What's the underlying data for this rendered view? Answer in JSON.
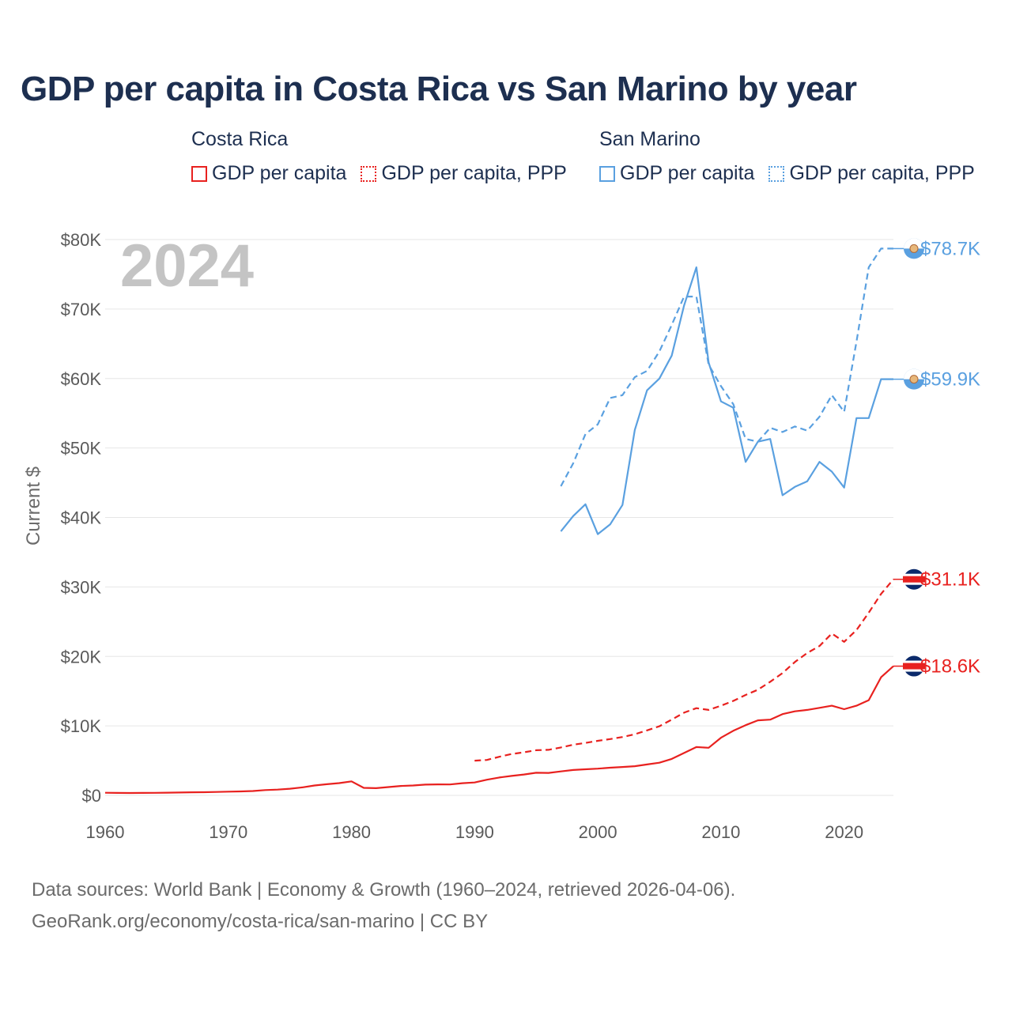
{
  "title": "GDP per capita in Costa Rica vs San Marino by year",
  "legend": {
    "groups": [
      {
        "name": "Costa Rica",
        "color": "#e8211f",
        "items": [
          {
            "label": "GDP per capita",
            "style": "solid"
          },
          {
            "label": "GDP per capita, PPP",
            "style": "dotted"
          }
        ]
      },
      {
        "name": "San Marino",
        "color": "#5aa0e0",
        "items": [
          {
            "label": "GDP per capita",
            "style": "solid"
          },
          {
            "label": "GDP per capita, PPP",
            "style": "dotted"
          }
        ]
      }
    ]
  },
  "year_badge": "2024",
  "footer": {
    "line1": "Data sources: World Bank | Economy & Growth (1960–2024, retrieved 2026-04-06).",
    "line2": "GeoRank.org/economy/costa-rica/san-marino | CC BY"
  },
  "chart_data": {
    "type": "line",
    "title": "GDP per capita in Costa Rica vs San Marino by year",
    "xlabel": "",
    "ylabel": "Current $",
    "xlim": [
      1960,
      2024
    ],
    "ylim": [
      0,
      80000
    ],
    "x_ticks": [
      1960,
      1970,
      1980,
      1990,
      2000,
      2010,
      2020
    ],
    "y_ticks": [
      0,
      10000,
      20000,
      30000,
      40000,
      50000,
      60000,
      70000,
      80000
    ],
    "y_tick_labels": [
      "$0",
      "$10K",
      "$20K",
      "$30K",
      "$40K",
      "$50K",
      "$60K",
      "$70K",
      "$80K"
    ],
    "grid": true,
    "series": [
      {
        "name": "Costa Rica — GDP per capita",
        "country": "Costa Rica",
        "color": "#e8211f",
        "dash": "solid",
        "end_label": "$18.6K",
        "flag": "costa-rica",
        "points": [
          [
            1960,
            380
          ],
          [
            1961,
            350
          ],
          [
            1962,
            340
          ],
          [
            1963,
            350
          ],
          [
            1964,
            360
          ],
          [
            1965,
            390
          ],
          [
            1966,
            410
          ],
          [
            1967,
            440
          ],
          [
            1968,
            460
          ],
          [
            1969,
            490
          ],
          [
            1970,
            540
          ],
          [
            1971,
            570
          ],
          [
            1972,
            630
          ],
          [
            1973,
            760
          ],
          [
            1974,
            830
          ],
          [
            1975,
            960
          ],
          [
            1976,
            1150
          ],
          [
            1977,
            1420
          ],
          [
            1978,
            1600
          ],
          [
            1979,
            1760
          ],
          [
            1980,
            2010
          ],
          [
            1981,
            1080
          ],
          [
            1982,
            1040
          ],
          [
            1983,
            1200
          ],
          [
            1984,
            1350
          ],
          [
            1985,
            1420
          ],
          [
            1986,
            1550
          ],
          [
            1987,
            1580
          ],
          [
            1988,
            1570
          ],
          [
            1989,
            1750
          ],
          [
            1990,
            1850
          ],
          [
            1991,
            2250
          ],
          [
            1992,
            2570
          ],
          [
            1993,
            2800
          ],
          [
            1994,
            3000
          ],
          [
            1995,
            3250
          ],
          [
            1996,
            3230
          ],
          [
            1997,
            3450
          ],
          [
            1998,
            3650
          ],
          [
            1999,
            3750
          ],
          [
            2000,
            3850
          ],
          [
            2001,
            3980
          ],
          [
            2002,
            4080
          ],
          [
            2003,
            4200
          ],
          [
            2004,
            4450
          ],
          [
            2005,
            4700
          ],
          [
            2006,
            5250
          ],
          [
            2007,
            6100
          ],
          [
            2008,
            6950
          ],
          [
            2009,
            6850
          ],
          [
            2010,
            8300
          ],
          [
            2011,
            9300
          ],
          [
            2012,
            10100
          ],
          [
            2013,
            10800
          ],
          [
            2014,
            10900
          ],
          [
            2015,
            11700
          ],
          [
            2016,
            12100
          ],
          [
            2017,
            12300
          ],
          [
            2018,
            12600
          ],
          [
            2019,
            12900
          ],
          [
            2020,
            12400
          ],
          [
            2021,
            12900
          ],
          [
            2022,
            13700
          ],
          [
            2023,
            17000
          ],
          [
            2024,
            18600
          ]
        ]
      },
      {
        "name": "Costa Rica — GDP per capita, PPP",
        "country": "Costa Rica",
        "color": "#e8211f",
        "dash": "dashed",
        "end_label": "$31.1K",
        "flag": "costa-rica",
        "points": [
          [
            1990,
            5000
          ],
          [
            1991,
            5100
          ],
          [
            1992,
            5550
          ],
          [
            1993,
            5950
          ],
          [
            1994,
            6200
          ],
          [
            1995,
            6500
          ],
          [
            1996,
            6550
          ],
          [
            1997,
            6900
          ],
          [
            1998,
            7300
          ],
          [
            1999,
            7550
          ],
          [
            2000,
            7850
          ],
          [
            2001,
            8100
          ],
          [
            2002,
            8400
          ],
          [
            2003,
            8800
          ],
          [
            2004,
            9350
          ],
          [
            2005,
            9950
          ],
          [
            2006,
            10900
          ],
          [
            2007,
            11900
          ],
          [
            2008,
            12550
          ],
          [
            2009,
            12300
          ],
          [
            2010,
            12900
          ],
          [
            2011,
            13600
          ],
          [
            2012,
            14450
          ],
          [
            2013,
            15200
          ],
          [
            2014,
            16350
          ],
          [
            2015,
            17600
          ],
          [
            2016,
            19200
          ],
          [
            2017,
            20500
          ],
          [
            2018,
            21500
          ],
          [
            2019,
            23300
          ],
          [
            2020,
            22100
          ],
          [
            2021,
            23800
          ],
          [
            2022,
            26300
          ],
          [
            2023,
            29000
          ],
          [
            2024,
            31100
          ]
        ]
      },
      {
        "name": "San Marino — GDP per capita",
        "country": "San Marino",
        "color": "#5aa0e0",
        "dash": "solid",
        "end_label": "$59.9K",
        "flag": "san-marino",
        "points": [
          [
            1997,
            38000
          ],
          [
            1998,
            40200
          ],
          [
            1999,
            41900
          ],
          [
            2000,
            37600
          ],
          [
            2001,
            39000
          ],
          [
            2002,
            41800
          ],
          [
            2003,
            52600
          ],
          [
            2004,
            58300
          ],
          [
            2005,
            60000
          ],
          [
            2006,
            63300
          ],
          [
            2007,
            70500
          ],
          [
            2008,
            76000
          ],
          [
            2009,
            62300
          ],
          [
            2010,
            56700
          ],
          [
            2011,
            55800
          ],
          [
            2012,
            48000
          ],
          [
            2013,
            50900
          ],
          [
            2014,
            51300
          ],
          [
            2015,
            43200
          ],
          [
            2016,
            44400
          ],
          [
            2017,
            45200
          ],
          [
            2018,
            48000
          ],
          [
            2019,
            46600
          ],
          [
            2020,
            44300
          ],
          [
            2021,
            54300
          ],
          [
            2022,
            54300
          ],
          [
            2023,
            59900
          ],
          [
            2024,
            59900
          ]
        ]
      },
      {
        "name": "San Marino — GDP per capita, PPP",
        "country": "San Marino",
        "color": "#5aa0e0",
        "dash": "dashed",
        "end_label": "$78.7K",
        "flag": "san-marino",
        "points": [
          [
            1997,
            44500
          ],
          [
            1998,
            47800
          ],
          [
            1999,
            52000
          ],
          [
            2000,
            53400
          ],
          [
            2001,
            57200
          ],
          [
            2002,
            57600
          ],
          [
            2003,
            60200
          ],
          [
            2004,
            61100
          ],
          [
            2005,
            63900
          ],
          [
            2006,
            67700
          ],
          [
            2007,
            71800
          ],
          [
            2008,
            71800
          ],
          [
            2009,
            62000
          ],
          [
            2010,
            58900
          ],
          [
            2011,
            56300
          ],
          [
            2012,
            51300
          ],
          [
            2013,
            50900
          ],
          [
            2014,
            52900
          ],
          [
            2015,
            52300
          ],
          [
            2016,
            53100
          ],
          [
            2017,
            52500
          ],
          [
            2018,
            54500
          ],
          [
            2019,
            57600
          ],
          [
            2020,
            55200
          ],
          [
            2021,
            65300
          ],
          [
            2022,
            76000
          ],
          [
            2023,
            78700
          ],
          [
            2024,
            78700
          ]
        ]
      }
    ]
  }
}
